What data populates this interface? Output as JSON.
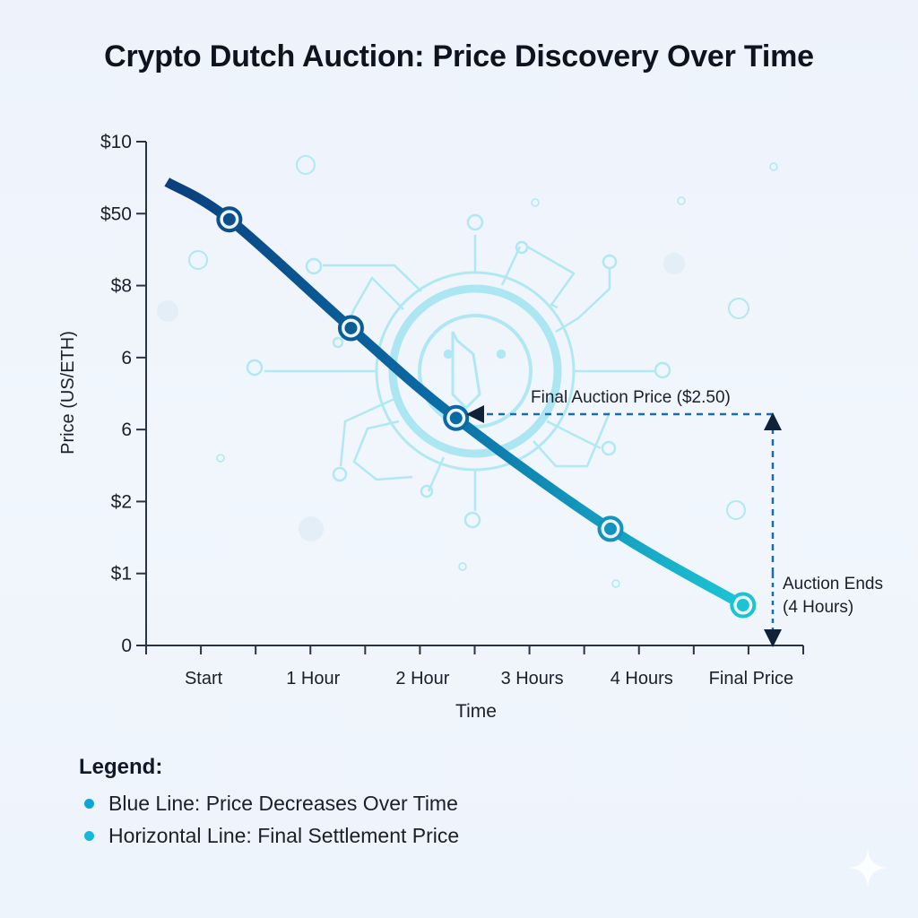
{
  "chart_data": {
    "type": "line",
    "title": "Crypto Dutch Auction: Price Discovery Over Time",
    "xlabel": "Time",
    "ylabel": "Price (US/ETH)",
    "x_tick_labels": [
      "Start",
      "1 Hour",
      "2 Hour",
      "3 Hours",
      "4 Hours",
      "Final Price"
    ],
    "y_tick_labels": [
      "0",
      "$1",
      "$2",
      "6",
      "6",
      "$8",
      "$50",
      "$10"
    ],
    "y_tick_note": "y values below are in tick-index units (0 = bottom tick '0', 7 = top tick '$10'), since printed labels are non-monotonic",
    "xlim": [
      0,
      12
    ],
    "ylim": [
      0,
      7
    ],
    "x_unit_note": "x in minor-tick units (12 minor intervals across axis)",
    "series": [
      {
        "name": "Blue Line: Price Decreases Over Time",
        "color_start": "#0b3f7e",
        "color_end": "#1cc6d6",
        "line_start": {
          "x": 0.38,
          "y": 6.44
        },
        "points": [
          {
            "x": 1.52,
            "y": 5.92
          },
          {
            "x": 3.74,
            "y": 4.41
          },
          {
            "x": 5.66,
            "y": 3.16
          },
          {
            "x": 8.48,
            "y": 1.62
          },
          {
            "x": 10.9,
            "y": 0.56
          }
        ]
      }
    ],
    "annotations": [
      {
        "text": "Final Auction Price ($2.50)",
        "type": "dashed-arrow-horizontal",
        "target_point_index": 2
      },
      {
        "text_lines": [
          "Auction Ends",
          "(4 Hours)"
        ],
        "type": "dashed-arrow-vertical"
      }
    ],
    "grid": false,
    "legend": {
      "title": "Legend:",
      "placement": "bottom-left",
      "items": [
        {
          "label": "Blue Line: Price Decreases Over Time",
          "color": "#0ea5d4"
        },
        {
          "label": "Horizontal Line: Final Settlement Price",
          "color": "#16b8e0"
        }
      ]
    }
  },
  "colors": {
    "axis": "#2b3442",
    "annotation": "#1a6ea8",
    "decoration": "#a6e6f2"
  }
}
